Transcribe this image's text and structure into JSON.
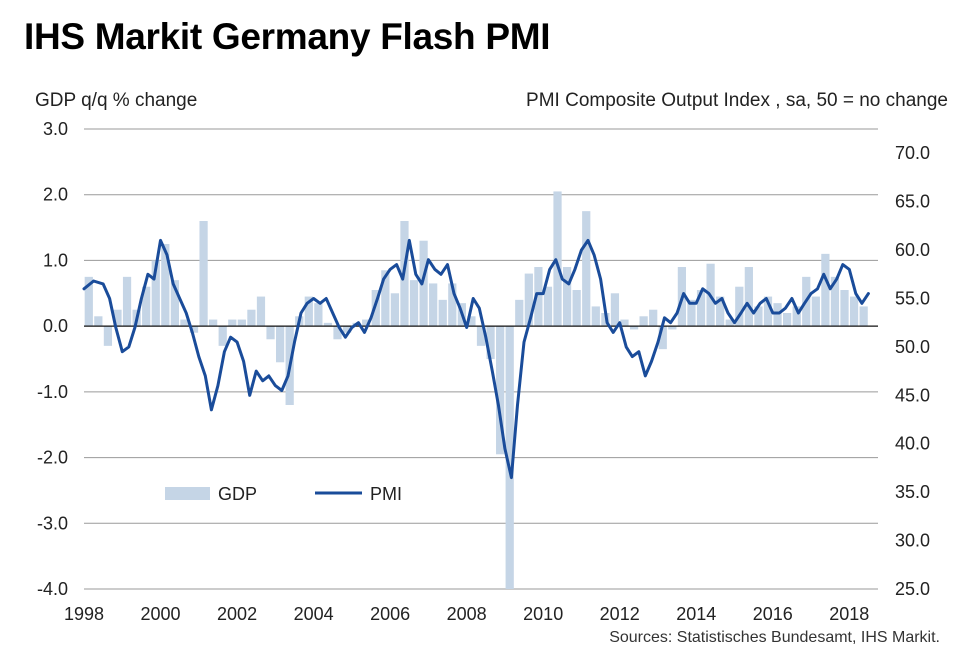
{
  "chart_data": {
    "type": "bar+line",
    "title": "IHS Markit Germany Flash PMI",
    "left_axis_label": "GDP q/q % change",
    "right_axis_label": "PMI Composite  Output Index , sa, 50 = no change",
    "source": "Sources: Statistisches Bundesamt, IHS Markit.",
    "x_range": [
      1998.0,
      2018.75
    ],
    "x_ticks": [
      "1998",
      "2000",
      "2002",
      "2004",
      "2006",
      "2008",
      "2010",
      "2012",
      "2014",
      "2016",
      "2018"
    ],
    "y_left": {
      "min": -4.0,
      "max": 3.0,
      "ticks": [
        "3.0",
        "2.0",
        "1.0",
        "0.0",
        "-1.0",
        "-2.0",
        "-3.0",
        "-4.0"
      ]
    },
    "y_right": {
      "min": 25.0,
      "max": 72.5,
      "ticks": [
        "70.0",
        "65.0",
        "60.0",
        "55.0",
        "50.0",
        "45.0",
        "40.0",
        "35.0",
        "30.0",
        "25.0"
      ]
    },
    "grid": "horizontal",
    "legend_position": "lower-left",
    "colors": {
      "gdp": "#c5d5e6",
      "pmi": "#1a4c9a",
      "grid": "#9a9a9a"
    },
    "series": [
      {
        "name": "GDP",
        "kind": "bar",
        "axis": "left",
        "quarters_start": 1998.0,
        "values": [
          0.75,
          0.15,
          -0.3,
          0.25,
          0.75,
          0.25,
          0.6,
          1.0,
          1.25,
          0.7,
          0.1,
          -0.1,
          1.6,
          0.1,
          -0.3,
          0.1,
          0.1,
          0.25,
          0.45,
          -0.2,
          -0.55,
          -1.2,
          0.15,
          0.45,
          0.35,
          0.05,
          -0.2,
          -0.1,
          0.05,
          0.1,
          0.55,
          0.85,
          0.5,
          1.6,
          0.7,
          1.3,
          0.65,
          0.4,
          0.65,
          0.35,
          0.15,
          -0.3,
          -0.5,
          -1.95,
          -4.0,
          0.4,
          0.8,
          0.9,
          0.6,
          2.05,
          0.9,
          0.55,
          1.75,
          0.3,
          0.2,
          0.5,
          0.1,
          -0.05,
          0.15,
          0.25,
          -0.35,
          -0.05,
          0.9,
          0.4,
          0.55,
          0.95,
          0.45,
          0.1,
          0.6,
          0.9,
          0.3,
          0.45,
          0.35,
          0.2,
          0.3,
          0.75,
          0.45,
          1.1,
          0.75,
          0.55,
          0.45,
          0.3
        ],
        "note": "quarterly values; last at Q2 2018"
      },
      {
        "name": "PMI",
        "kind": "line",
        "axis": "right",
        "x": [
          1998.0,
          1998.25,
          1998.5,
          1998.67,
          1998.83,
          1999.0,
          1999.17,
          1999.33,
          1999.5,
          1999.67,
          1999.83,
          2000.0,
          2000.17,
          2000.33,
          2000.5,
          2000.67,
          2000.83,
          2001.0,
          2001.17,
          2001.33,
          2001.5,
          2001.67,
          2001.83,
          2002.0,
          2002.17,
          2002.33,
          2002.5,
          2002.67,
          2002.83,
          2003.0,
          2003.17,
          2003.33,
          2003.5,
          2003.67,
          2003.83,
          2004.0,
          2004.17,
          2004.33,
          2004.5,
          2004.67,
          2004.83,
          2005.0,
          2005.17,
          2005.33,
          2005.5,
          2005.67,
          2005.83,
          2006.0,
          2006.17,
          2006.33,
          2006.5,
          2006.67,
          2006.83,
          2007.0,
          2007.17,
          2007.33,
          2007.5,
          2007.67,
          2007.83,
          2008.0,
          2008.17,
          2008.33,
          2008.5,
          2008.67,
          2008.83,
          2009.0,
          2009.17,
          2009.33,
          2009.5,
          2009.67,
          2009.83,
          2010.0,
          2010.17,
          2010.33,
          2010.5,
          2010.67,
          2010.83,
          2011.0,
          2011.17,
          2011.33,
          2011.5,
          2011.67,
          2011.83,
          2012.0,
          2012.17,
          2012.33,
          2012.5,
          2012.67,
          2012.83,
          2013.0,
          2013.17,
          2013.33,
          2013.5,
          2013.67,
          2013.83,
          2014.0,
          2014.17,
          2014.33,
          2014.5,
          2014.67,
          2014.83,
          2015.0,
          2015.17,
          2015.33,
          2015.5,
          2015.67,
          2015.83,
          2016.0,
          2016.17,
          2016.33,
          2016.5,
          2016.67,
          2016.83,
          2017.0,
          2017.17,
          2017.33,
          2017.5,
          2017.67,
          2017.83,
          2018.0,
          2018.17,
          2018.33,
          2018.5
        ],
        "values": [
          56.0,
          56.8,
          56.5,
          55.0,
          52.0,
          49.5,
          50.0,
          52.0,
          55.0,
          57.5,
          57.0,
          61.0,
          59.5,
          56.5,
          55.0,
          53.5,
          51.5,
          49.0,
          47.0,
          43.5,
          46.0,
          49.5,
          51.0,
          50.5,
          48.5,
          45.0,
          47.5,
          46.5,
          47.0,
          46.0,
          45.5,
          47.0,
          50.5,
          53.5,
          54.5,
          55.0,
          54.5,
          55.0,
          53.5,
          52.0,
          51.0,
          52.0,
          52.5,
          51.5,
          53.0,
          55.0,
          57.0,
          58.0,
          58.5,
          57.0,
          61.0,
          57.5,
          56.5,
          59.0,
          58.0,
          57.5,
          58.5,
          55.5,
          54.0,
          52.0,
          55.0,
          54.0,
          51.0,
          47.5,
          44.0,
          39.5,
          36.5,
          44.0,
          50.5,
          53.0,
          55.5,
          55.5,
          58.0,
          59.0,
          57.0,
          56.5,
          58.0,
          60.0,
          61.0,
          59.5,
          57.0,
          52.5,
          51.5,
          52.5,
          50.0,
          49.0,
          49.5,
          47.0,
          48.5,
          50.5,
          53.0,
          52.5,
          53.5,
          55.5,
          54.5,
          54.5,
          56.0,
          55.5,
          54.5,
          55.0,
          53.5,
          52.5,
          53.5,
          54.5,
          53.5,
          54.5,
          55.0,
          53.5,
          53.5,
          54.0,
          55.0,
          53.5,
          54.5,
          55.5,
          56.0,
          57.5,
          56.0,
          57.0,
          58.5,
          58.0,
          55.5,
          54.5,
          55.5
        ]
      }
    ],
    "legend": [
      {
        "key": "GDP",
        "label": "GDP"
      },
      {
        "key": "PMI",
        "label": "PMI"
      }
    ]
  }
}
